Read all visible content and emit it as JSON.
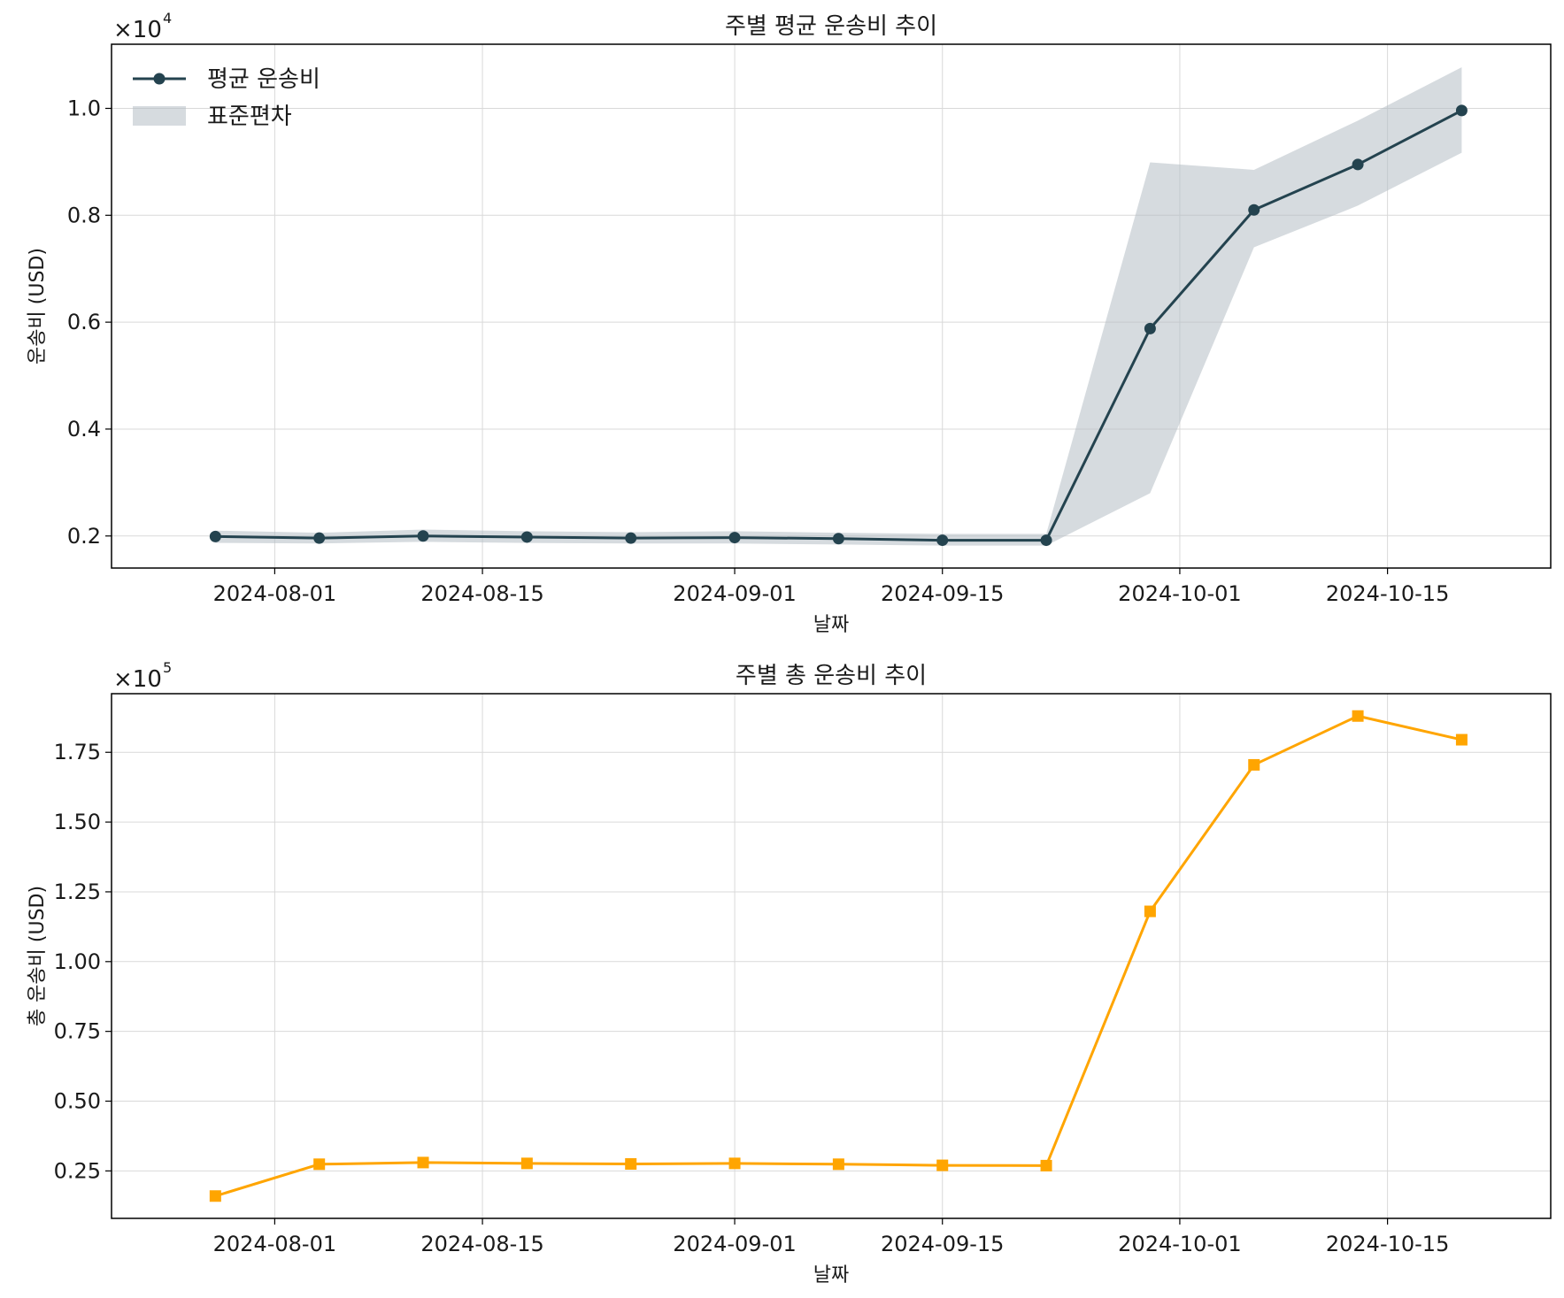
{
  "chart_data": [
    {
      "type": "line",
      "title": "주별 평균 운송비 추이",
      "xlabel": "날짜",
      "ylabel": "운송비 (USD)",
      "offset_base": "×10",
      "offset_exp": "4",
      "multiplier": 10000,
      "ylim": [
        0.14,
        1.12
      ],
      "yticks": [
        0.2,
        0.4,
        0.6,
        0.8,
        1.0
      ],
      "ytick_labels": [
        "0.2",
        "0.4",
        "0.6",
        "0.8",
        "1.0"
      ],
      "xlim": [
        "2024-07-21",
        "2024-10-26"
      ],
      "xticks": [
        "2024-08-01",
        "2024-08-15",
        "2024-09-01",
        "2024-09-15",
        "2024-10-01",
        "2024-10-15"
      ],
      "grid": true,
      "legend_position": "top-left",
      "colors": {
        "line": "#24434f",
        "band": "#b4bec4"
      },
      "x": [
        "2024-07-28",
        "2024-08-04",
        "2024-08-11",
        "2024-08-18",
        "2024-08-25",
        "2024-09-01",
        "2024-09-08",
        "2024-09-15",
        "2024-09-22",
        "2024-09-29",
        "2024-10-06",
        "2024-10-13",
        "2024-10-20"
      ],
      "series": [
        {
          "name": "평균 운송비",
          "values": [
            1990,
            1960,
            2000,
            1980,
            1960,
            1970,
            1950,
            1920,
            1920,
            5880,
            8100,
            8950,
            9960
          ]
        }
      ],
      "band": {
        "name": "표준편차",
        "lower": [
          1870,
          1860,
          1890,
          1870,
          1860,
          1860,
          1840,
          1820,
          1820,
          2800,
          7400,
          8180,
          9170
        ],
        "upper": [
          2100,
          2060,
          2120,
          2090,
          2070,
          2090,
          2060,
          2040,
          2040,
          8990,
          8850,
          9770,
          10770
        ]
      }
    },
    {
      "type": "line",
      "title": "주별 총 운송비 추이",
      "xlabel": "날짜",
      "ylabel": "총 운송비 (USD)",
      "offset_base": "×10",
      "offset_exp": "5",
      "multiplier": 100000,
      "ylim": [
        0.08,
        1.96
      ],
      "yticks": [
        0.25,
        0.5,
        0.75,
        1.0,
        1.25,
        1.5,
        1.75
      ],
      "ytick_labels": [
        "0.25",
        "0.50",
        "0.75",
        "1.00",
        "1.25",
        "1.50",
        "1.75"
      ],
      "xlim": [
        "2024-07-21",
        "2024-10-26"
      ],
      "xticks": [
        "2024-08-01",
        "2024-08-15",
        "2024-09-01",
        "2024-09-15",
        "2024-10-01",
        "2024-10-15"
      ],
      "grid": true,
      "colors": {
        "line": "#ffa500"
      },
      "x": [
        "2024-07-28",
        "2024-08-04",
        "2024-08-11",
        "2024-08-18",
        "2024-08-25",
        "2024-09-01",
        "2024-09-08",
        "2024-09-15",
        "2024-09-22",
        "2024-09-29",
        "2024-10-06",
        "2024-10-13",
        "2024-10-20"
      ],
      "series": [
        {
          "values": [
            16000,
            27400,
            28000,
            27700,
            27500,
            27700,
            27400,
            27000,
            26900,
            118000,
            170500,
            188000,
            179500
          ]
        }
      ]
    }
  ]
}
